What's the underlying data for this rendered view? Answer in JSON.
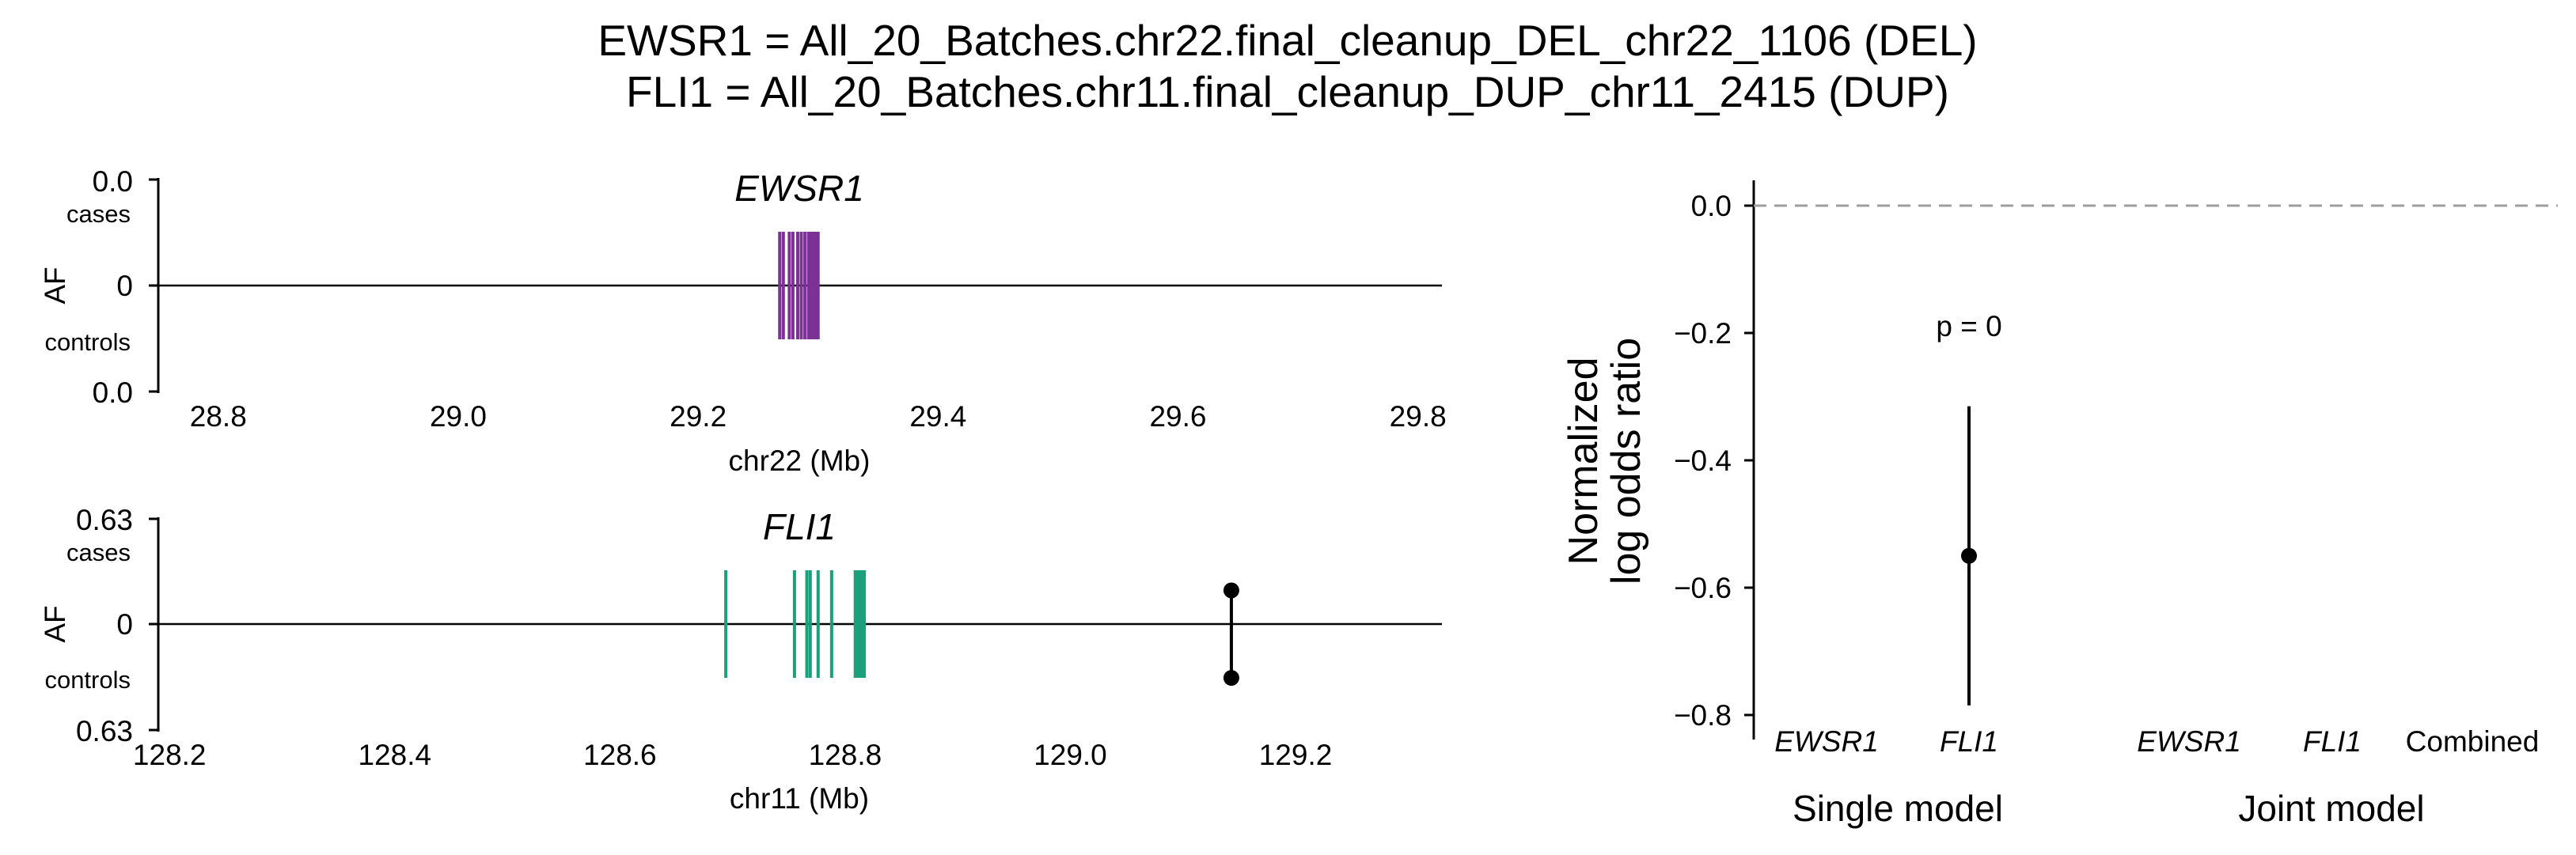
{
  "title_lines": [
    "EWSR1 = All_20_Batches.chr22.final_cleanup_DEL_chr22_1106 (DEL)",
    "FLI1 = All_20_Batches.chr11.final_cleanup_DUP_chr11_2415 (DUP)"
  ],
  "colors": {
    "ewsr1": "#7B3294",
    "fli1": "#1AA07A",
    "point": "#000000",
    "ref_line": "#9E9E9E"
  },
  "chart_data": [
    {
      "type": "gene-track",
      "gene": "EWSR1",
      "xlabel": "chr22 (Mb)",
      "ylabel": "AF",
      "xlim": [
        28.75,
        29.82
      ],
      "xticks": [
        "28.8",
        "29.0",
        "29.2",
        "29.4",
        "29.6",
        "29.8"
      ],
      "xtick_values": [
        28.8,
        29.0,
        29.2,
        29.4,
        29.6,
        29.8
      ],
      "ytick_top": "0.0",
      "ytick_mid": "0",
      "ytick_bottom": "0.0",
      "cases_label": "cases",
      "controls_label": "controls",
      "exons_mb": [
        29.268,
        29.271,
        29.276,
        29.279,
        29.283,
        29.286,
        29.289,
        29.292,
        29.294,
        29.296,
        29.298,
        29.3
      ],
      "sv_points": []
    },
    {
      "type": "gene-track",
      "gene": "FLI1",
      "xlabel": "chr11 (Mb)",
      "ylabel": "AF",
      "xlim": [
        128.19,
        129.33
      ],
      "xticks": [
        "128.2",
        "128.4",
        "128.6",
        "128.8",
        "129.0",
        "129.2"
      ],
      "xtick_values": [
        128.2,
        128.4,
        128.6,
        128.8,
        129.0,
        129.2
      ],
      "ytick_top": "0.63",
      "ytick_mid": "0",
      "ytick_bottom": "0.63",
      "af_max": 0.63,
      "cases_label": "cases",
      "controls_label": "controls",
      "exons_mb": [
        128.694,
        128.755,
        128.766,
        128.769,
        128.776,
        128.788,
        128.809,
        128.811,
        128.813,
        128.815,
        128.817
      ],
      "sv_points": [
        {
          "x_mb": 129.143,
          "af_cases": 0.2,
          "af_controls": 0.32
        }
      ]
    },
    {
      "type": "scatter",
      "ylabel_lines": [
        "Normalized",
        "log odds ratio"
      ],
      "ylim": [
        -0.82,
        0.04
      ],
      "yticks": [
        "0.0",
        "-0.2",
        "-0.4",
        "-0.6",
        "-0.8"
      ],
      "ytick_values": [
        0.0,
        -0.2,
        -0.4,
        -0.6,
        -0.8
      ],
      "reference_line": 0.0,
      "categories": [
        "EWSR1",
        "FLI1",
        "EWSR1",
        "FLI1",
        "Combined"
      ],
      "category_italic": [
        true,
        true,
        true,
        true,
        false
      ],
      "groups": [
        {
          "label": "Single model",
          "categories": [
            0,
            1
          ]
        },
        {
          "label": "Joint model",
          "categories": [
            2,
            3,
            4
          ]
        }
      ],
      "points": [
        {
          "category": 1,
          "value": -0.55,
          "ci_low": -0.785,
          "ci_high": -0.315,
          "annotation": "p = 0"
        }
      ]
    }
  ]
}
